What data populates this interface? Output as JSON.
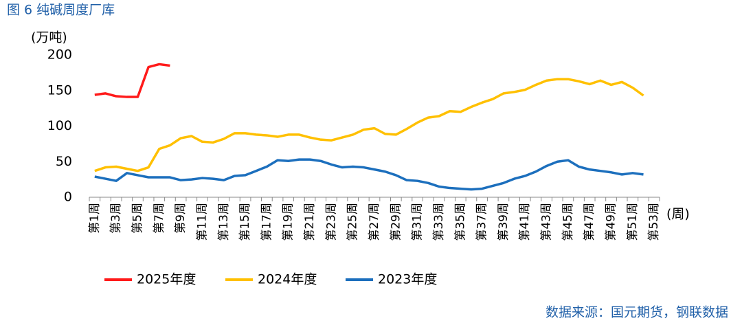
{
  "chart_data": {
    "type": "line",
    "title": "图 6 纯碱周度厂库",
    "y_label": "(万吨)",
    "x_label": "(周)",
    "source": "数据来源：国元期货，钢联数据",
    "categories": [
      "第1周",
      null,
      "第3周",
      null,
      "第5周",
      null,
      "第7周",
      null,
      "第9周",
      null,
      "第11周",
      null,
      "第13周",
      null,
      "第15周",
      null,
      "第17周",
      null,
      "第19周",
      null,
      "第21周",
      null,
      "第23周",
      null,
      "第25周",
      null,
      "第27周",
      null,
      "第29周",
      null,
      "第31周",
      null,
      "第33周",
      null,
      "第35周",
      null,
      "第37周",
      null,
      "第39周",
      null,
      "第41周",
      null,
      "第43周",
      null,
      "第45周",
      null,
      "第47周",
      null,
      "第49周",
      null,
      "第51周",
      null,
      "第53周"
    ],
    "ylim": [
      0,
      200
    ],
    "yticks": [
      0,
      50,
      100,
      150,
      200
    ],
    "grid": false,
    "legend": "bottom",
    "series": [
      {
        "name": "2025年度",
        "color": "#ff1a1a",
        "values": [
          144,
          146,
          142,
          141,
          141,
          183,
          187,
          185,
          null,
          null,
          null,
          null,
          null,
          null,
          null,
          null,
          null,
          null,
          null,
          null,
          null,
          null,
          null,
          null,
          null,
          null,
          null,
          null,
          null,
          null,
          null,
          null,
          null,
          null,
          null,
          null,
          null,
          null,
          null,
          null,
          null,
          null,
          null,
          null,
          null,
          null,
          null,
          null,
          null,
          null,
          null,
          null,
          null
        ]
      },
      {
        "name": "2024年度",
        "color": "#ffc000",
        "values": [
          37,
          42,
          43,
          40,
          37,
          42,
          68,
          73,
          83,
          86,
          78,
          77,
          82,
          90,
          90,
          88,
          87,
          85,
          88,
          88,
          84,
          81,
          80,
          84,
          88,
          95,
          97,
          89,
          88,
          96,
          105,
          112,
          114,
          121,
          120,
          127,
          133,
          138,
          146,
          148,
          151,
          158,
          164,
          166,
          166,
          163,
          159,
          164,
          158,
          162,
          154,
          143,
          null
        ]
      },
      {
        "name": "2023年度",
        "color": "#1c6fbd",
        "values": [
          29,
          26,
          23,
          34,
          31,
          28,
          28,
          28,
          24,
          25,
          27,
          26,
          24,
          30,
          31,
          37,
          43,
          52,
          51,
          53,
          53,
          51,
          46,
          42,
          43,
          42,
          39,
          36,
          31,
          24,
          23,
          20,
          15,
          13,
          12,
          11,
          12,
          16,
          20,
          26,
          30,
          36,
          44,
          50,
          52,
          43,
          39,
          37,
          35,
          32,
          34,
          32,
          null
        ]
      }
    ]
  }
}
